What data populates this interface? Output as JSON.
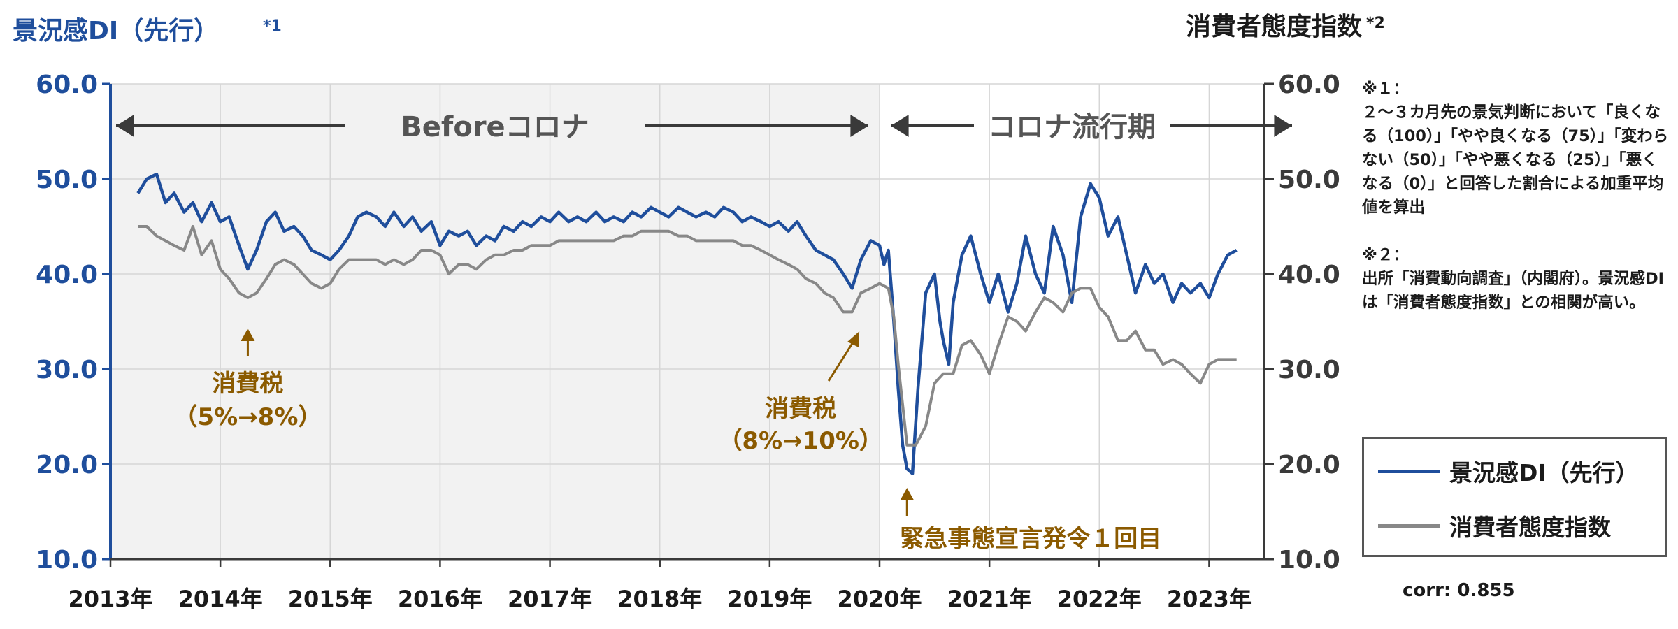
{
  "chart_data": {
    "type": "line",
    "left_axis_title": "景況感DI（先行）",
    "left_axis_title_note": "*1",
    "right_axis_title": "消費者態度指数",
    "right_axis_title_note": "*2",
    "ylim_left": [
      10,
      60
    ],
    "ylim_right": [
      10,
      60
    ],
    "y_ticks_left": [
      "60.0",
      "50.0",
      "40.0",
      "30.0",
      "20.0",
      "10.0"
    ],
    "y_ticks_right": [
      "60.0",
      "50.0",
      "40.0",
      "30.0",
      "20.0",
      "10.0"
    ],
    "x_range": [
      2013.0,
      2023.5
    ],
    "x_ticks": [
      "2013年",
      "2014年",
      "2015年",
      "2016年",
      "2017年",
      "2018年",
      "2019年",
      "2020年",
      "2021年",
      "2022年",
      "2023年"
    ],
    "grid": true,
    "shaded_period": {
      "from": 2013.0,
      "to": 2020.0,
      "color": "#f2f2f2"
    },
    "period_labels": [
      {
        "text": "Beforeコロナ",
        "from": 2013.0,
        "to": 2020.0
      },
      {
        "text": "コロナ流行期",
        "from": 2020.0,
        "to": 2023.5
      }
    ],
    "annotations": [
      {
        "lines": [
          "消費税",
          "（5%→8%）"
        ],
        "x": 2014.25,
        "y": 38.5
      },
      {
        "lines": [
          "消費税",
          "（8%→10%）"
        ],
        "x": 2019.6,
        "y": 36.5
      },
      {
        "lines": [
          "緊急事態宣言発令１回目"
        ],
        "x": 2020.25,
        "y": 19.5
      }
    ],
    "series": [
      {
        "name": "景況感DI（先行）",
        "color": "#1f4e9c",
        "axis": "left",
        "points": [
          [
            2013.25,
            48.5
          ],
          [
            2013.33,
            50.0
          ],
          [
            2013.42,
            50.5
          ],
          [
            2013.5,
            47.5
          ],
          [
            2013.58,
            48.5
          ],
          [
            2013.67,
            46.5
          ],
          [
            2013.75,
            47.5
          ],
          [
            2013.83,
            45.5
          ],
          [
            2013.92,
            47.5
          ],
          [
            2014.0,
            45.5
          ],
          [
            2014.08,
            46.0
          ],
          [
            2014.17,
            43.0
          ],
          [
            2014.25,
            40.5
          ],
          [
            2014.33,
            42.5
          ],
          [
            2014.42,
            45.5
          ],
          [
            2014.5,
            46.5
          ],
          [
            2014.58,
            44.5
          ],
          [
            2014.67,
            45.0
          ],
          [
            2014.75,
            44.0
          ],
          [
            2014.83,
            42.5
          ],
          [
            2014.92,
            42.0
          ],
          [
            2015.0,
            41.5
          ],
          [
            2015.08,
            42.5
          ],
          [
            2015.17,
            44.0
          ],
          [
            2015.25,
            46.0
          ],
          [
            2015.33,
            46.5
          ],
          [
            2015.42,
            46.0
          ],
          [
            2015.5,
            45.0
          ],
          [
            2015.58,
            46.5
          ],
          [
            2015.67,
            45.0
          ],
          [
            2015.75,
            46.0
          ],
          [
            2015.83,
            44.5
          ],
          [
            2015.92,
            45.5
          ],
          [
            2016.0,
            43.0
          ],
          [
            2016.08,
            44.5
          ],
          [
            2016.17,
            44.0
          ],
          [
            2016.25,
            44.5
          ],
          [
            2016.33,
            43.0
          ],
          [
            2016.42,
            44.0
          ],
          [
            2016.5,
            43.5
          ],
          [
            2016.58,
            45.0
          ],
          [
            2016.67,
            44.5
          ],
          [
            2016.75,
            45.5
          ],
          [
            2016.83,
            45.0
          ],
          [
            2016.92,
            46.0
          ],
          [
            2017.0,
            45.5
          ],
          [
            2017.08,
            46.5
          ],
          [
            2017.17,
            45.5
          ],
          [
            2017.25,
            46.0
          ],
          [
            2017.33,
            45.5
          ],
          [
            2017.42,
            46.5
          ],
          [
            2017.5,
            45.5
          ],
          [
            2017.58,
            46.0
          ],
          [
            2017.67,
            45.5
          ],
          [
            2017.75,
            46.5
          ],
          [
            2017.83,
            46.0
          ],
          [
            2017.92,
            47.0
          ],
          [
            2018.0,
            46.5
          ],
          [
            2018.08,
            46.0
          ],
          [
            2018.17,
            47.0
          ],
          [
            2018.25,
            46.5
          ],
          [
            2018.33,
            46.0
          ],
          [
            2018.42,
            46.5
          ],
          [
            2018.5,
            46.0
          ],
          [
            2018.58,
            47.0
          ],
          [
            2018.67,
            46.5
          ],
          [
            2018.75,
            45.5
          ],
          [
            2018.83,
            46.0
          ],
          [
            2018.92,
            45.5
          ],
          [
            2019.0,
            45.0
          ],
          [
            2019.08,
            45.5
          ],
          [
            2019.17,
            44.5
          ],
          [
            2019.25,
            45.5
          ],
          [
            2019.33,
            44.0
          ],
          [
            2019.42,
            42.5
          ],
          [
            2019.5,
            42.0
          ],
          [
            2019.58,
            41.5
          ],
          [
            2019.67,
            40.0
          ],
          [
            2019.75,
            38.5
          ],
          [
            2019.83,
            41.5
          ],
          [
            2019.92,
            43.5
          ],
          [
            2020.0,
            43.0
          ],
          [
            2020.04,
            41.0
          ],
          [
            2020.08,
            42.5
          ],
          [
            2020.13,
            35.0
          ],
          [
            2020.17,
            28.0
          ],
          [
            2020.21,
            22.0
          ],
          [
            2020.25,
            19.5
          ],
          [
            2020.3,
            19.0
          ],
          [
            2020.35,
            28.0
          ],
          [
            2020.42,
            38.0
          ],
          [
            2020.5,
            40.0
          ],
          [
            2020.55,
            35.0
          ],
          [
            2020.58,
            33.0
          ],
          [
            2020.63,
            30.5
          ],
          [
            2020.67,
            37.0
          ],
          [
            2020.75,
            42.0
          ],
          [
            2020.83,
            44.0
          ],
          [
            2020.92,
            40.0
          ],
          [
            2021.0,
            37.0
          ],
          [
            2021.08,
            40.0
          ],
          [
            2021.17,
            36.0
          ],
          [
            2021.25,
            39.0
          ],
          [
            2021.33,
            44.0
          ],
          [
            2021.42,
            40.0
          ],
          [
            2021.5,
            38.0
          ],
          [
            2021.58,
            45.0
          ],
          [
            2021.67,
            42.0
          ],
          [
            2021.75,
            37.0
          ],
          [
            2021.83,
            46.0
          ],
          [
            2021.92,
            49.5
          ],
          [
            2022.0,
            48.0
          ],
          [
            2022.08,
            44.0
          ],
          [
            2022.17,
            46.0
          ],
          [
            2022.25,
            42.0
          ],
          [
            2022.33,
            38.0
          ],
          [
            2022.42,
            41.0
          ],
          [
            2022.5,
            39.0
          ],
          [
            2022.58,
            40.0
          ],
          [
            2022.67,
            37.0
          ],
          [
            2022.75,
            39.0
          ],
          [
            2022.83,
            38.0
          ],
          [
            2022.92,
            39.0
          ],
          [
            2023.0,
            37.5
          ],
          [
            2023.08,
            40.0
          ],
          [
            2023.17,
            42.0
          ],
          [
            2023.25,
            42.5
          ]
        ]
      },
      {
        "name": "消費者態度指数",
        "color": "#888888",
        "axis": "right",
        "points": [
          [
            2013.25,
            45.0
          ],
          [
            2013.33,
            45.0
          ],
          [
            2013.42,
            44.0
          ],
          [
            2013.5,
            43.5
          ],
          [
            2013.58,
            43.0
          ],
          [
            2013.67,
            42.5
          ],
          [
            2013.75,
            45.0
          ],
          [
            2013.83,
            42.0
          ],
          [
            2013.92,
            43.5
          ],
          [
            2014.0,
            40.5
          ],
          [
            2014.08,
            39.5
          ],
          [
            2014.17,
            38.0
          ],
          [
            2014.25,
            37.5
          ],
          [
            2014.33,
            38.0
          ],
          [
            2014.42,
            39.5
          ],
          [
            2014.5,
            41.0
          ],
          [
            2014.58,
            41.5
          ],
          [
            2014.67,
            41.0
          ],
          [
            2014.75,
            40.0
          ],
          [
            2014.83,
            39.0
          ],
          [
            2014.92,
            38.5
          ],
          [
            2015.0,
            39.0
          ],
          [
            2015.08,
            40.5
          ],
          [
            2015.17,
            41.5
          ],
          [
            2015.25,
            41.5
          ],
          [
            2015.33,
            41.5
          ],
          [
            2015.42,
            41.5
          ],
          [
            2015.5,
            41.0
          ],
          [
            2015.58,
            41.5
          ],
          [
            2015.67,
            41.0
          ],
          [
            2015.75,
            41.5
          ],
          [
            2015.83,
            42.5
          ],
          [
            2015.92,
            42.5
          ],
          [
            2016.0,
            42.0
          ],
          [
            2016.08,
            40.0
          ],
          [
            2016.17,
            41.0
          ],
          [
            2016.25,
            41.0
          ],
          [
            2016.33,
            40.5
          ],
          [
            2016.42,
            41.5
          ],
          [
            2016.5,
            42.0
          ],
          [
            2016.58,
            42.0
          ],
          [
            2016.67,
            42.5
          ],
          [
            2016.75,
            42.5
          ],
          [
            2016.83,
            43.0
          ],
          [
            2016.92,
            43.0
          ],
          [
            2017.0,
            43.0
          ],
          [
            2017.08,
            43.5
          ],
          [
            2017.17,
            43.5
          ],
          [
            2017.25,
            43.5
          ],
          [
            2017.33,
            43.5
          ],
          [
            2017.42,
            43.5
          ],
          [
            2017.5,
            43.5
          ],
          [
            2017.58,
            43.5
          ],
          [
            2017.67,
            44.0
          ],
          [
            2017.75,
            44.0
          ],
          [
            2017.83,
            44.5
          ],
          [
            2017.92,
            44.5
          ],
          [
            2018.0,
            44.5
          ],
          [
            2018.08,
            44.5
          ],
          [
            2018.17,
            44.0
          ],
          [
            2018.25,
            44.0
          ],
          [
            2018.33,
            43.5
          ],
          [
            2018.42,
            43.5
          ],
          [
            2018.5,
            43.5
          ],
          [
            2018.58,
            43.5
          ],
          [
            2018.67,
            43.5
          ],
          [
            2018.75,
            43.0
          ],
          [
            2018.83,
            43.0
          ],
          [
            2018.92,
            42.5
          ],
          [
            2019.0,
            42.0
          ],
          [
            2019.08,
            41.5
          ],
          [
            2019.17,
            41.0
          ],
          [
            2019.25,
            40.5
          ],
          [
            2019.33,
            39.5
          ],
          [
            2019.42,
            39.0
          ],
          [
            2019.5,
            38.0
          ],
          [
            2019.58,
            37.5
          ],
          [
            2019.67,
            36.0
          ],
          [
            2019.75,
            36.0
          ],
          [
            2019.83,
            38.0
          ],
          [
            2019.92,
            38.5
          ],
          [
            2020.0,
            39.0
          ],
          [
            2020.08,
            38.5
          ],
          [
            2020.13,
            35.5
          ],
          [
            2020.17,
            30.5
          ],
          [
            2020.25,
            22.0
          ],
          [
            2020.33,
            22.0
          ],
          [
            2020.42,
            24.0
          ],
          [
            2020.5,
            28.5
          ],
          [
            2020.58,
            29.5
          ],
          [
            2020.67,
            29.5
          ],
          [
            2020.75,
            32.5
          ],
          [
            2020.83,
            33.0
          ],
          [
            2020.92,
            31.5
          ],
          [
            2021.0,
            29.5
          ],
          [
            2021.08,
            32.5
          ],
          [
            2021.17,
            35.5
          ],
          [
            2021.25,
            35.0
          ],
          [
            2021.33,
            34.0
          ],
          [
            2021.42,
            36.0
          ],
          [
            2021.5,
            37.5
          ],
          [
            2021.58,
            37.0
          ],
          [
            2021.67,
            36.0
          ],
          [
            2021.75,
            38.0
          ],
          [
            2021.83,
            38.5
          ],
          [
            2021.92,
            38.5
          ],
          [
            2022.0,
            36.5
          ],
          [
            2022.08,
            35.5
          ],
          [
            2022.17,
            33.0
          ],
          [
            2022.25,
            33.0
          ],
          [
            2022.33,
            34.0
          ],
          [
            2022.42,
            32.0
          ],
          [
            2022.5,
            32.0
          ],
          [
            2022.58,
            30.5
          ],
          [
            2022.67,
            31.0
          ],
          [
            2022.75,
            30.5
          ],
          [
            2022.83,
            29.5
          ],
          [
            2022.92,
            28.5
          ],
          [
            2023.0,
            30.5
          ],
          [
            2023.08,
            31.0
          ],
          [
            2023.17,
            31.0
          ],
          [
            2023.25,
            31.0
          ]
        ]
      }
    ]
  },
  "notes": [
    "※１：",
    "２～３カ月先の景気判断において「良くなる（100）」「やや良くなる（75）」「変わらない（50）」「やや悪くなる（25）」「悪くなる（0）」と回答した割合による加重平均値を算出",
    "※２：",
    "出所「消費動向調査」（内閣府）。景況感DIは「消費者態度指数」との相関が高い。"
  ],
  "legend": {
    "items": [
      "景況感DI（先行）",
      "消費者態度指数"
    ]
  },
  "correlation_label": "corr: 0.855",
  "colors": {
    "left_axis": "#1f4e9c",
    "right_axis": "#3a3a3a",
    "annotation": "#8b5a00",
    "shade": "#f2f2f2",
    "grid": "#d6d6d6"
  }
}
